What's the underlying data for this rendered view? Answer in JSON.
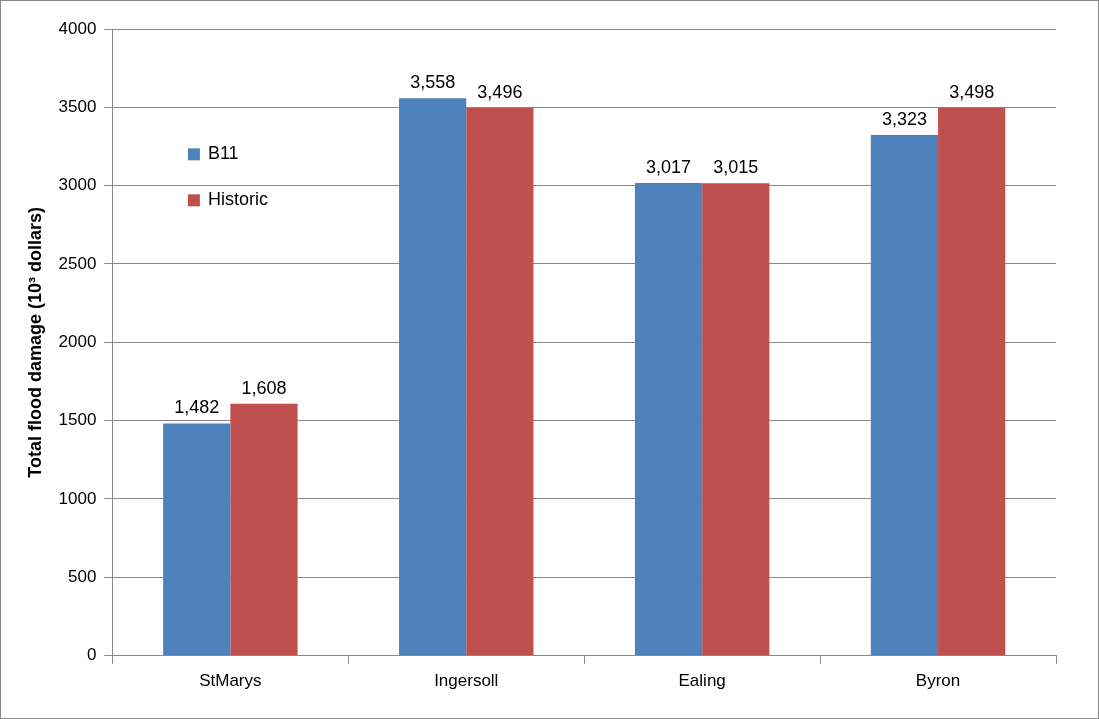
{
  "chart_data": {
    "type": "bar",
    "ylabel": "Total flood damage (10³ dollars)",
    "categories": [
      "StMarys",
      "Ingersoll",
      "Ealing",
      "Byron"
    ],
    "series": [
      {
        "name": "B11",
        "color": "#4f81bd",
        "values": [
          1482,
          3558,
          3017,
          3323
        ],
        "value_labels": [
          "1,482",
          "3,558",
          "3,017",
          "3,323"
        ]
      },
      {
        "name": "Historic",
        "color": "#c0504d",
        "values": [
          1608,
          3496,
          3015,
          3498
        ],
        "value_labels": [
          "1,608",
          "3,496",
          "3,015",
          "3,498"
        ]
      }
    ],
    "ylim": [
      0,
      4000
    ],
    "yticks": [
      0,
      500,
      1000,
      1500,
      2000,
      2500,
      3000,
      3500,
      4000
    ],
    "grid": "y",
    "legend": "top left"
  }
}
